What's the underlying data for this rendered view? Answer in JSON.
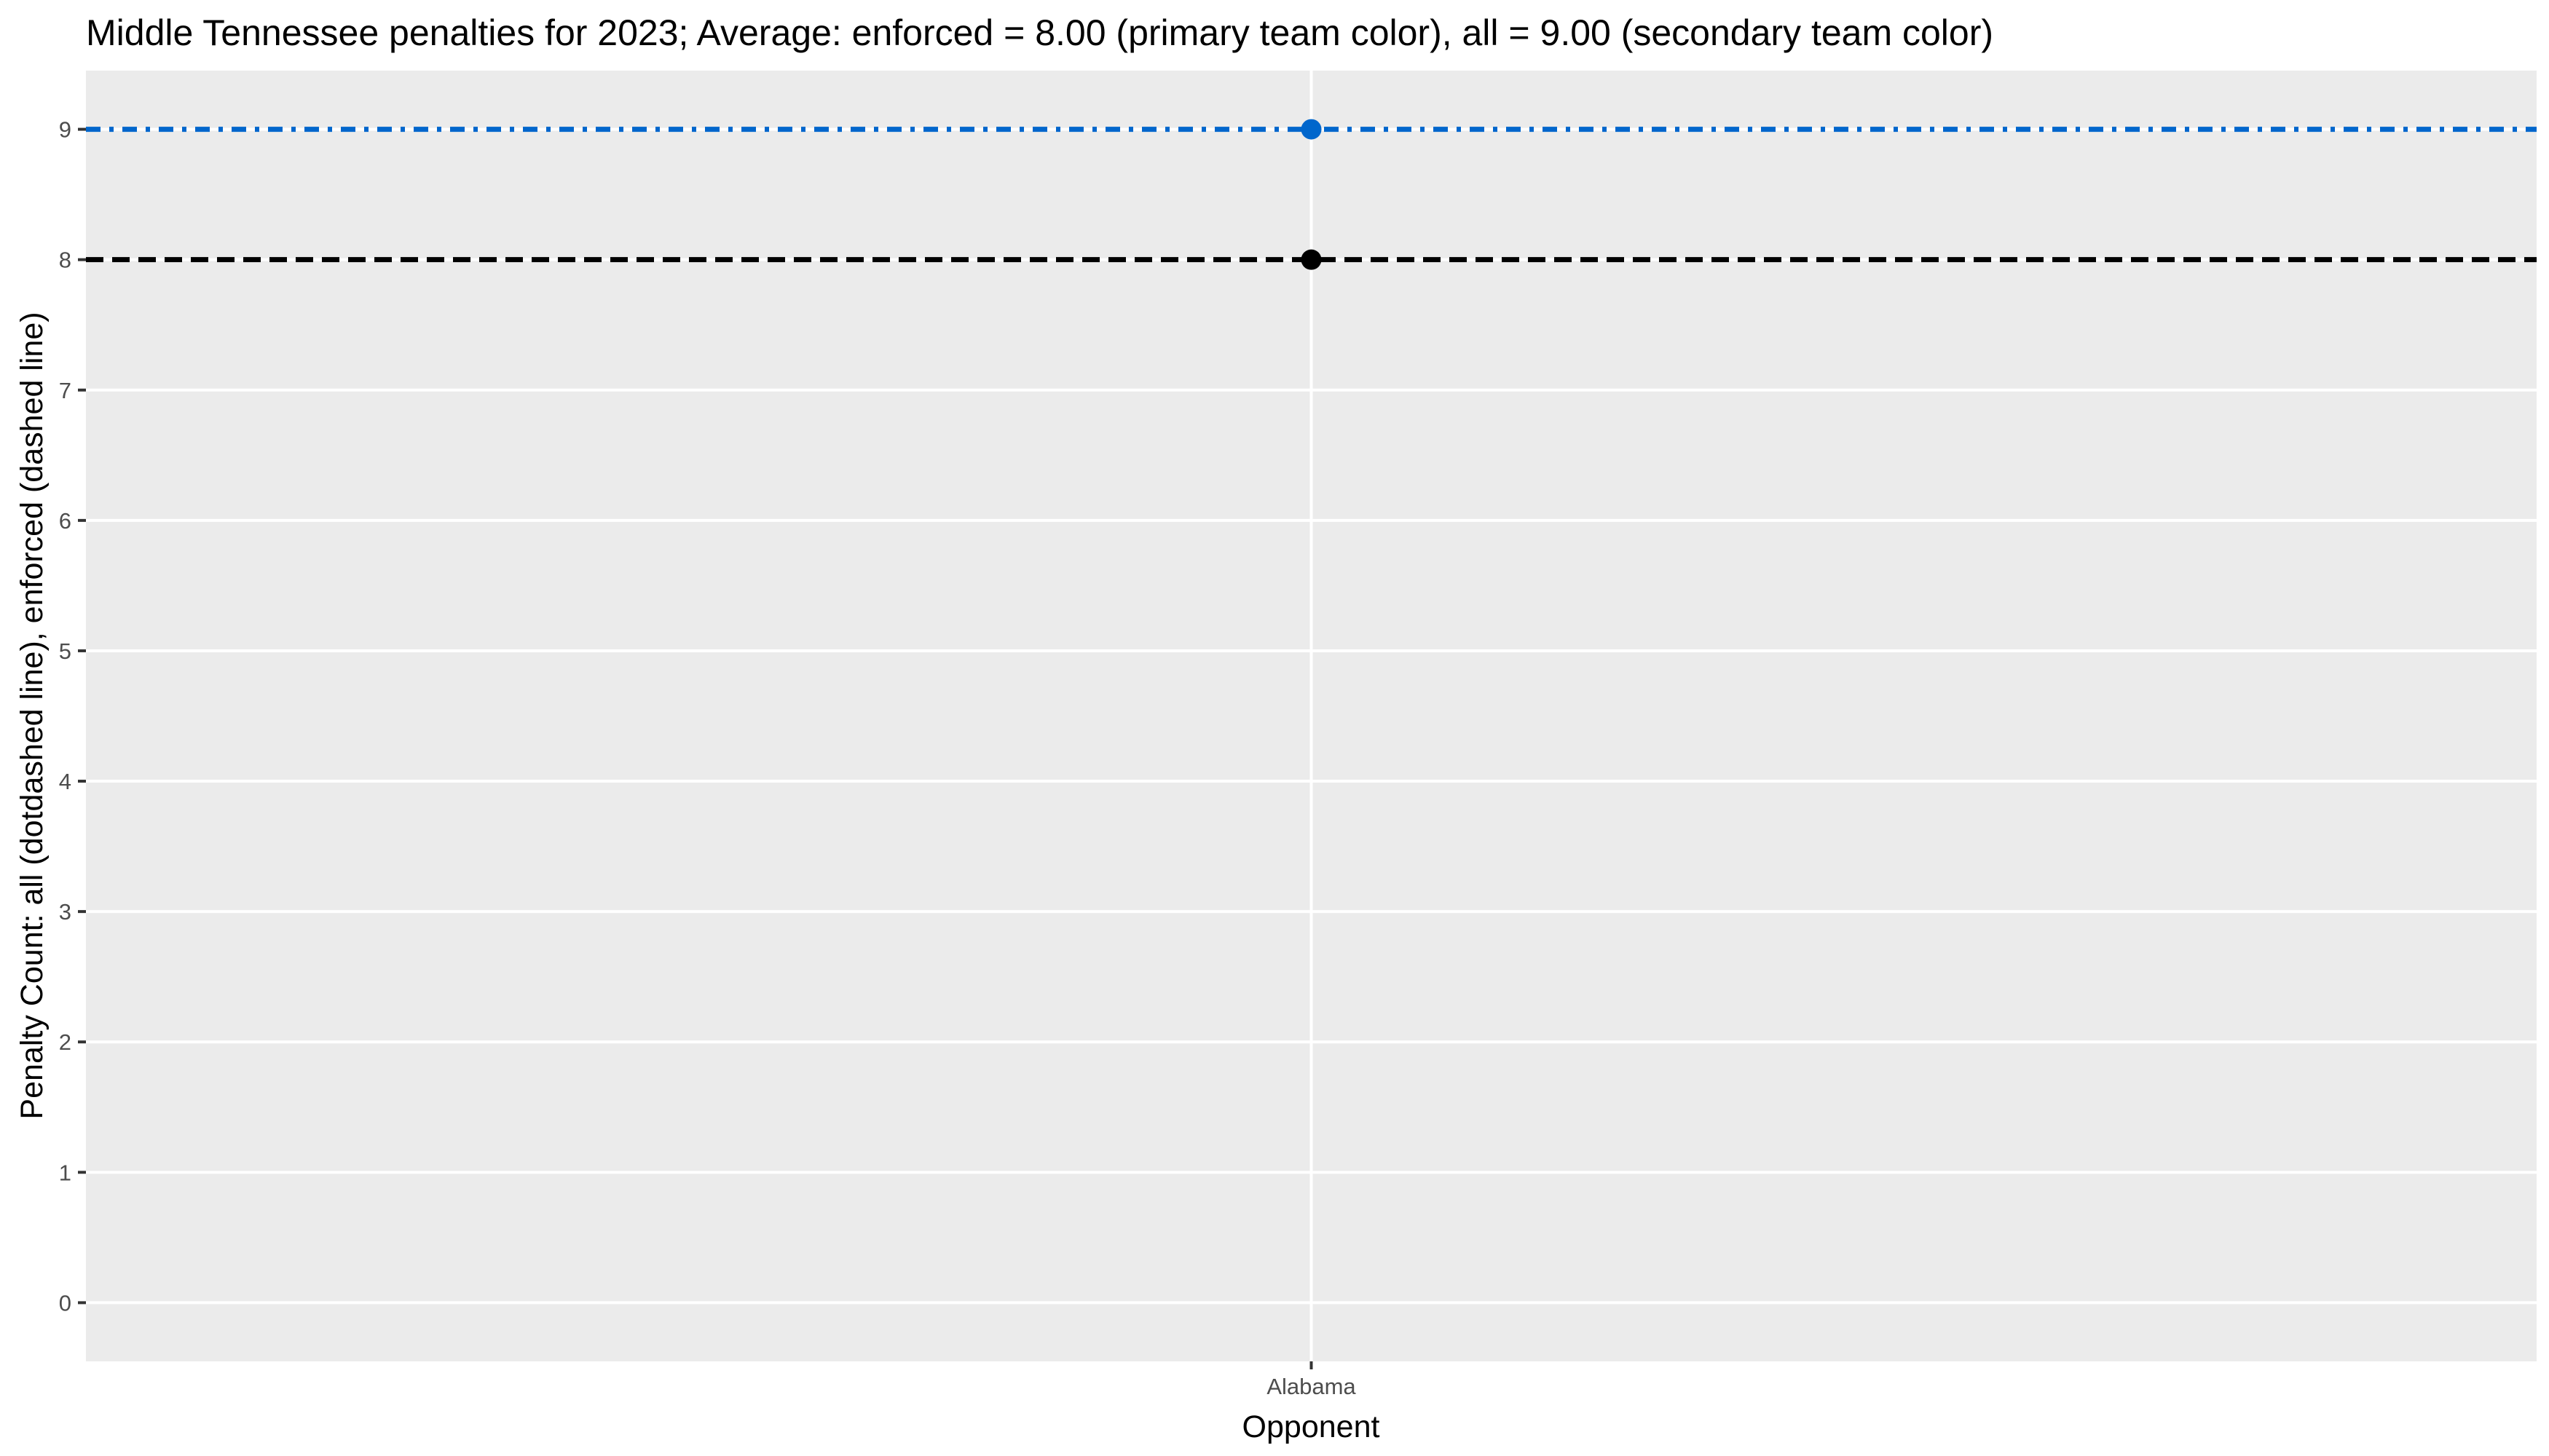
{
  "chart_data": {
    "type": "scatter",
    "title": "Middle Tennessee penalties for 2023; Average: enforced = 8.00 (primary team color), all = 9.00 (secondary team color)",
    "xlabel": "Opponent",
    "ylabel": "Penalty Count: all (dotdashed line), enforced (dashed line)",
    "categories": [
      "Alabama"
    ],
    "yticks": [
      0,
      1,
      2,
      3,
      4,
      5,
      6,
      7,
      8,
      9
    ],
    "ylim": [
      -0.45,
      9.45
    ],
    "grid": true,
    "series": [
      {
        "key": "all",
        "values": [
          9
        ],
        "color": "#0066CC"
      },
      {
        "key": "enforced",
        "values": [
          8
        ],
        "color": "#000000"
      }
    ],
    "reference_lines": [
      {
        "key": "all_average",
        "value": 9.0,
        "style": "dotdashed",
        "color": "#0066CC"
      },
      {
        "key": "enforced_average",
        "value": 8.0,
        "style": "dashed",
        "color": "#000000"
      }
    ],
    "panel_background": "#EBEBEB"
  }
}
